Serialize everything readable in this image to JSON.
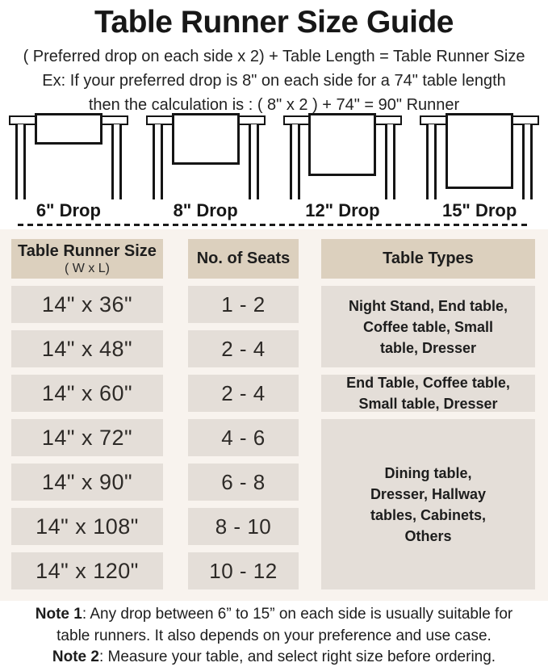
{
  "header": {
    "title": "Table Runner Size Guide",
    "formula": "( Preferred drop on each side x 2) + Table Length = Table Runner Size",
    "example_line1": "Ex: If your preferred drop is 8\" on each side for a 74\" table length",
    "example_line2": "then the calculation is : ( 8\" x 2 ) + 74\" = 90\" Runner"
  },
  "diagrams": [
    {
      "label": "6\" Drop",
      "drop_inches": 6
    },
    {
      "label": "8\" Drop",
      "drop_inches": 8
    },
    {
      "label": "12\" Drop",
      "drop_inches": 12
    },
    {
      "label": "15\" Drop",
      "drop_inches": 15
    }
  ],
  "size_table": {
    "header_size_line1": "Table Runner Size",
    "header_size_line2": "( W x L)",
    "header_seats": "No. of Seats",
    "header_types": "Table Types",
    "rows": [
      {
        "size": "14\" x 36\"",
        "seats": "1 - 2"
      },
      {
        "size": "14\" x 48\"",
        "seats": "2 - 4"
      },
      {
        "size": "14\" x 60\"",
        "seats": "2 - 4"
      },
      {
        "size": "14\" x 72\"",
        "seats": "4 - 6"
      },
      {
        "size": "14\" x 90\"",
        "seats": "6 - 8"
      },
      {
        "size": "14\" x 108\"",
        "seats": "8 - 10"
      },
      {
        "size": "14\" x 120\"",
        "seats": "10 - 12"
      }
    ],
    "type_boxes": [
      {
        "text": "Night Stand, End table, Coffee table, Small table, Dresser",
        "rows_spanned": "14\" x 36\" and 14\" x 48\"",
        "lines": [
          "Night Stand, End table,",
          "Coffee table, Small",
          "table, Dresser"
        ]
      },
      {
        "text": "End Table, Coffee table, Small table, Dresser",
        "rows_spanned": "14\" x 60\"",
        "lines": [
          "End Table, Coffee table,",
          "Small table, Dresser"
        ]
      },
      {
        "text": "Dining table, Dresser, Hallway tables, Cabinets, Others",
        "rows_spanned": "14\" x 72\" through 14\" x 120\"",
        "lines": [
          "Dining table,",
          "Dresser, Hallway",
          "tables, Cabinets,",
          "Others"
        ]
      }
    ]
  },
  "notes": {
    "note1_label": "Note 1",
    "note1_line1_rest": ": Any drop between 6” to 15” on each side is usually suitable for",
    "note1_line2": "table runners. It also depends on your preference and use case.",
    "note2_label": "Note 2",
    "note2_rest": ": Measure your table, and select right size before ordering."
  },
  "colors": {
    "header_box_bg": "#dcd0be",
    "row_box_bg": "#e4ded8",
    "section_bg": "#f8f3ee",
    "text": "#1b1b1b",
    "line_art": "#151515"
  },
  "chart_data": {
    "type": "table",
    "title": "Table Runner Size Guide",
    "columns": [
      "Table Runner Size ( W x L)",
      "No. of Seats",
      "Table Types"
    ],
    "rows": [
      [
        "14\" x 36\"",
        "1 - 2",
        "Night Stand, End table, Coffee table, Small table, Dresser"
      ],
      [
        "14\" x 48\"",
        "2 - 4",
        "Night Stand, End table, Coffee table, Small table, Dresser"
      ],
      [
        "14\" x 60\"",
        "2 - 4",
        "End Table, Coffee table, Small table, Dresser"
      ],
      [
        "14\" x 72\"",
        "4 - 6",
        "Dining table, Dresser, Hallway tables, Cabinets, Others"
      ],
      [
        "14\" x 90\"",
        "6 - 8",
        "Dining table, Dresser, Hallway tables, Cabinets, Others"
      ],
      [
        "14\" x 108\"",
        "8 - 10",
        "Dining table, Dresser, Hallway tables, Cabinets, Others"
      ],
      [
        "14\" x 120\"",
        "10 - 12",
        "Dining table, Dresser, Hallway tables, Cabinets, Others"
      ]
    ]
  }
}
